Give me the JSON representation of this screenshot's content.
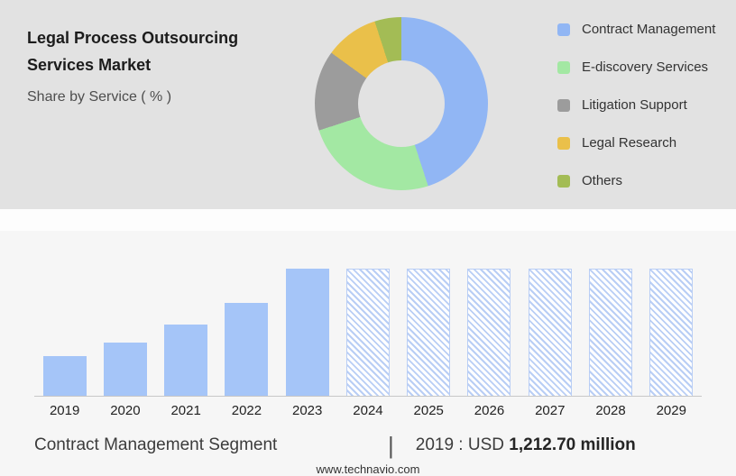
{
  "header": {
    "title_line1": "Legal Process Outsourcing",
    "title_line2": "Services Market",
    "subtitle": "Share by Service ( % )"
  },
  "caption": {
    "left": "Contract Management Segment",
    "separator": "|",
    "prefix": "2019 : USD",
    "value": "1,212.70 million"
  },
  "footer": {
    "url": "www.technavio.com"
  },
  "chart_data": [
    {
      "type": "pie",
      "subtype": "donut",
      "title": "Share by Service ( % )",
      "legend_position": "right",
      "donut_hole_ratio": 0.5,
      "segments": [
        {
          "label": "Contract Management",
          "value": 45,
          "color": "#91b6f4"
        },
        {
          "label": "E-discovery Services",
          "value": 25,
          "color": "#a3e8a3"
        },
        {
          "label": "Litigation Support",
          "value": 15,
          "color": "#9c9c9c"
        },
        {
          "label": "Legal Research",
          "value": 10,
          "color": "#eac04a"
        },
        {
          "label": "Others",
          "value": 5,
          "color": "#a3bc55"
        }
      ]
    },
    {
      "type": "bar",
      "title": "Contract Management Segment",
      "annotation": "2019 : USD 1,212.70 million",
      "categories": [
        "2019",
        "2020",
        "2021",
        "2022",
        "2023",
        "2024",
        "2025",
        "2026",
        "2027",
        "2028",
        "2029"
      ],
      "values": [
        31,
        42,
        56,
        73,
        100,
        100,
        100,
        100,
        100,
        100,
        100
      ],
      "values_note": "no value axis shown; values are relative bar heights (% of tallest bar)",
      "actual_years": [
        "2019",
        "2020",
        "2021",
        "2022",
        "2023"
      ],
      "forecast_years": [
        "2024",
        "2025",
        "2026",
        "2027",
        "2028",
        "2029"
      ],
      "bar_color": "#a5c5f8",
      "forecast_style": "hatched",
      "xlabel": "",
      "ylabel": "",
      "grid": false,
      "legend_position": "none"
    }
  ]
}
